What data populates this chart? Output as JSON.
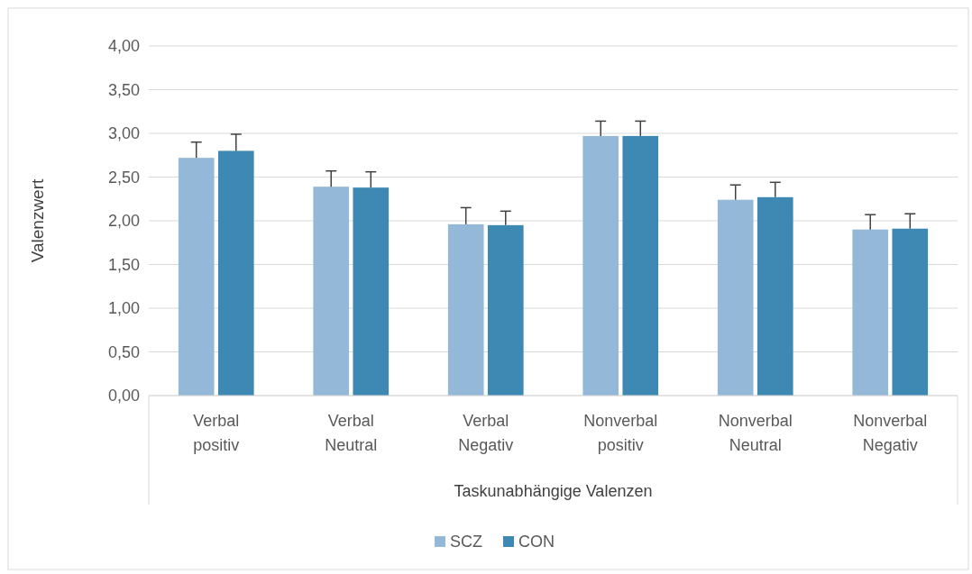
{
  "chart_data": {
    "type": "bar",
    "xlabel": "Taskunabhängige Valenzen",
    "ylabel": "Valenzwert",
    "categories": [
      "Verbal positiv",
      "Verbal Neutral",
      "Verbal Negativ",
      "Nonverbal positiv",
      "Nonverbal Neutral",
      "Nonverbal Negativ"
    ],
    "series": [
      {
        "name": "SCZ",
        "color": "#93b8d8",
        "values": [
          2.72,
          2.39,
          1.96,
          2.97,
          2.24,
          1.9
        ],
        "errors": [
          [
            2.72,
            2.9
          ],
          [
            2.39,
            2.57
          ],
          [
            1.96,
            2.15
          ],
          [
            2.97,
            3.14
          ],
          [
            2.24,
            2.41
          ],
          [
            1.9,
            2.07
          ]
        ]
      },
      {
        "name": "CON",
        "color": "#3e89b4",
        "values": [
          2.8,
          2.38,
          1.95,
          2.97,
          2.27,
          1.91
        ],
        "errors": [
          [
            2.8,
            2.99
          ],
          [
            2.38,
            2.56
          ],
          [
            1.95,
            2.11
          ],
          [
            2.97,
            3.14
          ],
          [
            2.27,
            2.44
          ],
          [
            1.91,
            2.08
          ]
        ]
      }
    ],
    "ylim": [
      0,
      4
    ],
    "yticks": [
      {
        "value": 0,
        "label": "0,00"
      },
      {
        "value": 0.5,
        "label": "0,50"
      },
      {
        "value": 1,
        "label": "1,00"
      },
      {
        "value": 1.5,
        "label": "1,50"
      },
      {
        "value": 2,
        "label": "2,00"
      },
      {
        "value": 2.5,
        "label": "2,50"
      },
      {
        "value": 3,
        "label": "3,00"
      },
      {
        "value": 3.5,
        "label": "3,50"
      },
      {
        "value": 4,
        "label": "4,00"
      }
    ],
    "grid": "y",
    "legend": "bottom"
  }
}
